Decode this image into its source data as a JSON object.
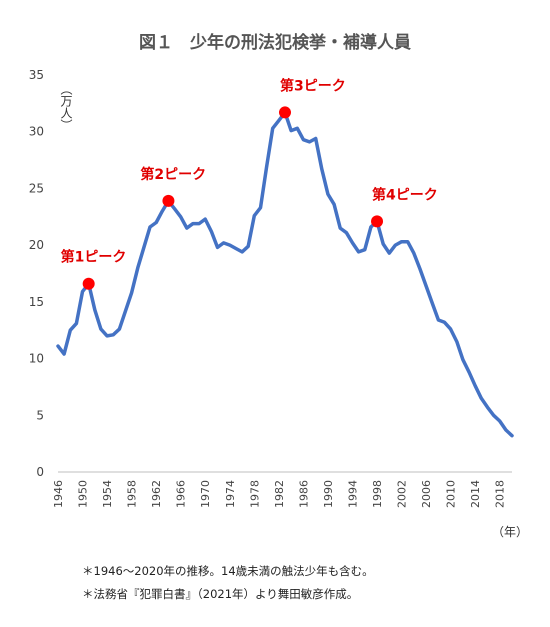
{
  "chart_data": {
    "type": "line",
    "title": "図１　少年の刑法犯検挙・補導人員",
    "ylabel": "（万人）",
    "xlabel": "（年）",
    "ylim": [
      0,
      35
    ],
    "xlim": [
      1946,
      2020
    ],
    "y_ticks": [
      0,
      5,
      10,
      15,
      20,
      25,
      30,
      35
    ],
    "x_ticks": [
      1946,
      1950,
      1954,
      1958,
      1962,
      1966,
      1970,
      1974,
      1978,
      1982,
      1986,
      1990,
      1994,
      1998,
      2002,
      2006,
      2010,
      2014,
      2018
    ],
    "line_color": "#4472C4",
    "marker_color": "#FF0000",
    "grid": false,
    "series": [
      {
        "x": [
          1946,
          1947,
          1948,
          1949,
          1950,
          1951,
          1952,
          1953,
          1954,
          1955,
          1956,
          1957,
          1958,
          1959,
          1960,
          1961,
          1962,
          1963,
          1964,
          1965,
          1966,
          1967,
          1968,
          1969,
          1970,
          1971,
          1972,
          1973,
          1974,
          1975,
          1976,
          1977,
          1978,
          1979,
          1980,
          1981,
          1982,
          1983,
          1984,
          1985,
          1986,
          1987,
          1988,
          1989,
          1990,
          1991,
          1992,
          1993,
          1994,
          1995,
          1996,
          1997,
          1998,
          1999,
          2000,
          2001,
          2002,
          2003,
          2004,
          2005,
          2006,
          2007,
          2008,
          2009,
          2010,
          2011,
          2012,
          2013,
          2014,
          2015,
          2016,
          2017,
          2018,
          2019,
          2020
        ],
        "values": [
          11.1,
          10.4,
          12.5,
          13.1,
          15.9,
          16.6,
          14.3,
          12.6,
          12.0,
          12.1,
          12.6,
          14.2,
          15.8,
          18.0,
          19.8,
          21.6,
          22.0,
          23.0,
          23.9,
          23.2,
          22.5,
          21.5,
          21.9,
          21.9,
          22.3,
          21.2,
          19.8,
          20.2,
          20.0,
          19.7,
          19.4,
          19.9,
          22.6,
          23.3,
          26.9,
          30.3,
          31.0,
          31.7,
          30.1,
          30.3,
          29.3,
          29.1,
          29.4,
          26.7,
          24.5,
          23.6,
          21.5,
          21.1,
          20.2,
          19.4,
          19.6,
          21.6,
          22.1,
          20.1,
          19.3,
          20.0,
          20.3,
          20.3,
          19.3,
          17.9,
          16.4,
          14.9,
          13.4,
          13.2,
          12.6,
          11.5,
          9.9,
          8.8,
          7.6,
          6.5,
          5.7,
          5.0,
          4.5,
          3.7,
          3.2
        ]
      }
    ],
    "peaks": [
      {
        "label": "第1ピーク",
        "x": 1951,
        "y": 16.6
      },
      {
        "label": "第2ピーク",
        "x": 1964,
        "y": 23.9
      },
      {
        "label": "第3ピーク",
        "x": 1983,
        "y": 31.7
      },
      {
        "label": "第4ピーク",
        "x": 1998,
        "y": 22.1
      }
    ]
  },
  "notes": [
    "＊1946〜2020年の推移。14歳未満の触法少年も含む。",
    "＊法務省『犯罪白書』（2021年）より舞田敏彦作成。"
  ]
}
